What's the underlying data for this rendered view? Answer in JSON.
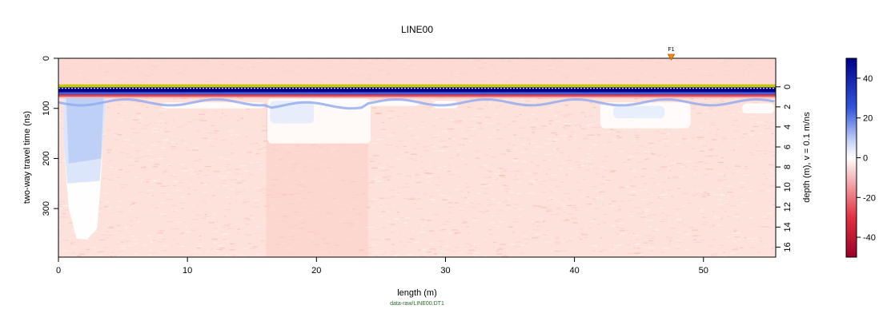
{
  "chart_data": {
    "type": "heatmap",
    "title": "LINE00",
    "xlabel": "length (m)",
    "ylabel_left": "two-way travel time (ns)",
    "ylabel_right": "depth (m),   v = 0.1 m/ns",
    "source_label": "data-raw/LINE00.DT1",
    "xlim": [
      0,
      55.6
    ],
    "ylim_time": [
      0,
      397
    ],
    "time_zero_ns": 57,
    "velocity_m_per_ns": 0.1,
    "x_ticks": [
      "0",
      "10",
      "20",
      "30",
      "40",
      "50"
    ],
    "y_ticks_left": [
      "0",
      "100",
      "200",
      "300"
    ],
    "y_ticks_right": [
      "0",
      "2",
      "4",
      "6",
      "8",
      "10",
      "12",
      "14",
      "16"
    ],
    "colorbar": {
      "range": [
        -50,
        50
      ],
      "ticks": [
        "40",
        "20",
        "0",
        "-20",
        "-40"
      ],
      "colors": {
        "positive": "#00008b",
        "zero": "#ffffff",
        "negative": "#9b0027"
      }
    },
    "marker": {
      "label": "F1",
      "x": 47.5,
      "color": "#ff8c00"
    },
    "surface_line_color": "#c8c800",
    "zero_line_ns": 60,
    "grid": false
  }
}
